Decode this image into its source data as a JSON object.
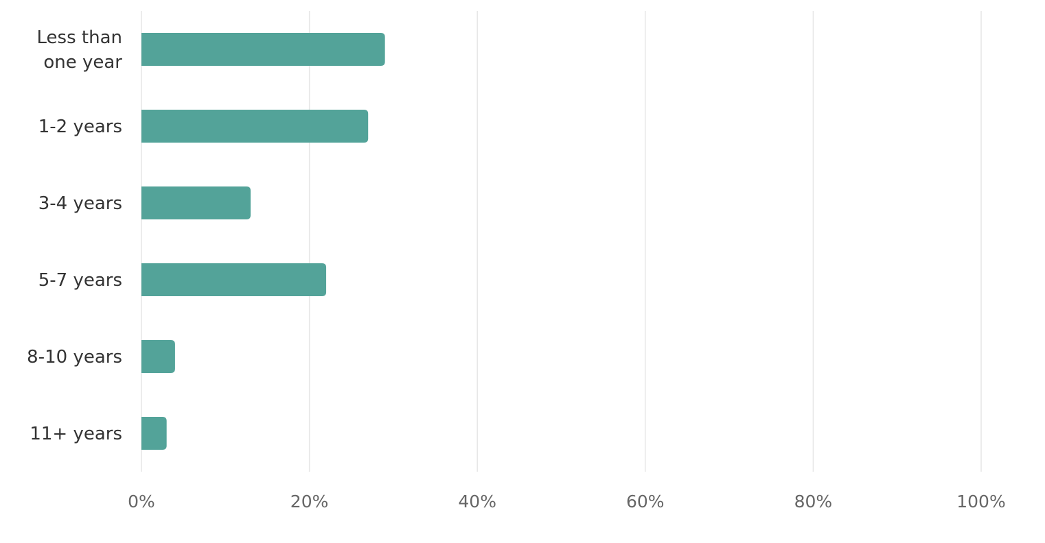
{
  "chart_data": {
    "type": "bar",
    "orientation": "horizontal",
    "categories": [
      [
        "Less than",
        "one year"
      ],
      [
        "1-2 years"
      ],
      [
        "3-4 years"
      ],
      [
        "5-7 years"
      ],
      [
        "8-10 years"
      ],
      [
        "11+ years"
      ]
    ],
    "values": [
      29,
      27,
      13,
      22,
      4,
      3
    ],
    "xlim": [
      0,
      100
    ],
    "x_ticks": [
      "0%",
      "20%",
      "40%",
      "60%",
      "80%",
      "100%"
    ],
    "x_tick_values": [
      0,
      20,
      40,
      60,
      80,
      100
    ],
    "grid": true,
    "legend": "none",
    "bar_color": "#53a399"
  }
}
